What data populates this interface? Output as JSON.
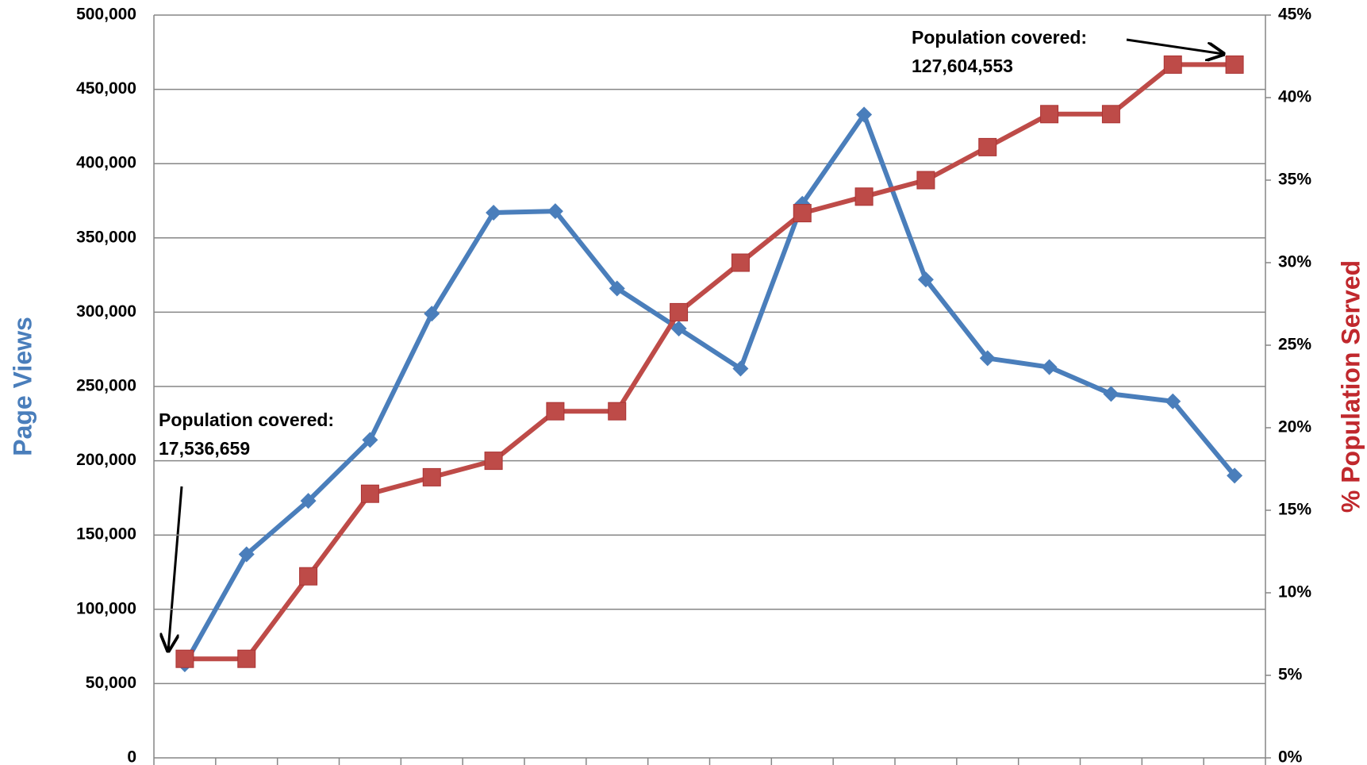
{
  "chart_data": {
    "type": "line",
    "y_label": "Page Views",
    "y2_label": "% Population Served",
    "categories": [
      null,
      null,
      null,
      null,
      null,
      null,
      null,
      null,
      null,
      null,
      null,
      null,
      null,
      null,
      null,
      null,
      null,
      null
    ],
    "series": [
      {
        "color": "#4a7ebb",
        "marker": "diamond",
        "values": [
          63000,
          137000,
          173000,
          214000,
          299000,
          367000,
          368000,
          316000,
          289000,
          262000,
          373000,
          433000,
          322000,
          269000,
          263000,
          245000,
          240000,
          190000
        ]
      },
      {
        "color": "#be4b48",
        "marker": "square",
        "axis": "y2",
        "values": [
          6,
          6,
          11,
          16,
          17,
          18,
          21,
          21,
          27,
          30,
          33,
          34,
          35,
          37,
          39,
          39,
          42,
          42
        ]
      }
    ],
    "ylim": [
      0,
      500000
    ],
    "yticks": [
      0,
      {
        "value": 50000,
        "label": "50,000"
      },
      {
        "value": 100000,
        "label": "100,000"
      },
      {
        "value": 150000,
        "label": "150,000"
      },
      {
        "value": 200000,
        "label": "200,000"
      },
      {
        "value": 250000,
        "label": "250,000"
      },
      {
        "value": 300000,
        "label": "300,000"
      },
      {
        "value": 350000,
        "label": "350,000"
      },
      {
        "value": 400000,
        "label": "400,000"
      },
      {
        "value": 450000,
        "label": "450,000"
      },
      {
        "value": 500000,
        "label": "500,000"
      }
    ],
    "y2lim": [
      0,
      45
    ],
    "y2ticks": [
      {
        "value": 0,
        "label": "0%"
      },
      {
        "value": 5,
        "label": "5%"
      },
      {
        "value": 10,
        "label": "10%"
      },
      {
        "value": 15,
        "label": "15%"
      },
      {
        "value": 20,
        "label": "20%"
      },
      {
        "value": 25,
        "label": "25%"
      },
      {
        "value": 30,
        "label": "30%"
      },
      {
        "value": 35,
        "label": "35%"
      },
      {
        "value": 40,
        "label": "40%"
      },
      {
        "value": 45,
        "label": "45%"
      }
    ],
    "grid": true,
    "annotations": [
      {
        "lines": [
          "Population covered:",
          "17,536,659"
        ]
      },
      {
        "lines": [
          "Population covered:",
          "127,604,553"
        ]
      }
    ]
  }
}
